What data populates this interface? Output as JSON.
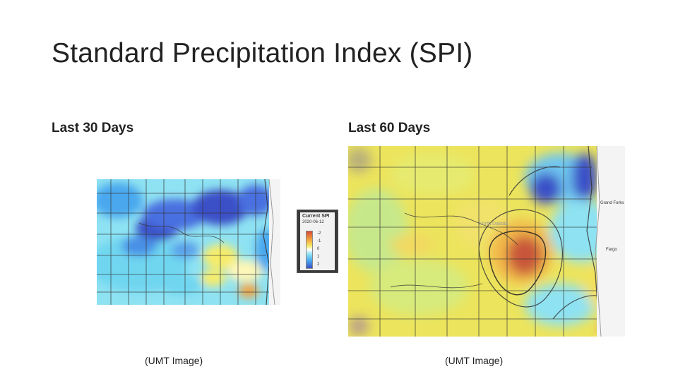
{
  "slide": {
    "title": "Standard Precipitation Index (SPI)"
  },
  "panels": [
    {
      "caption": "Last 30 Days",
      "footnote": "(UMT Image)"
    },
    {
      "caption": "Last 60 Days",
      "footnote": "(UMT Image)"
    }
  ],
  "legend": {
    "title": "Current SPI",
    "date": "2020-06-12",
    "ticks": [
      "-2",
      "-1",
      "0",
      "1",
      "2"
    ]
  },
  "map_labels": {
    "grand_forks": "Grand Forks",
    "fargo": "Fargo",
    "fargo_short": "Fargo",
    "grand_forks_short": "Grand Forks",
    "north_dakota": "North Dakota"
  },
  "colors": {
    "very_wet": "#3b4fc7",
    "wet": "#4aa7ee",
    "moist": "#8ee2f2",
    "normal": "#f7ec6a",
    "dry": "#f2a13c",
    "very_dry": "#c8573a"
  }
}
